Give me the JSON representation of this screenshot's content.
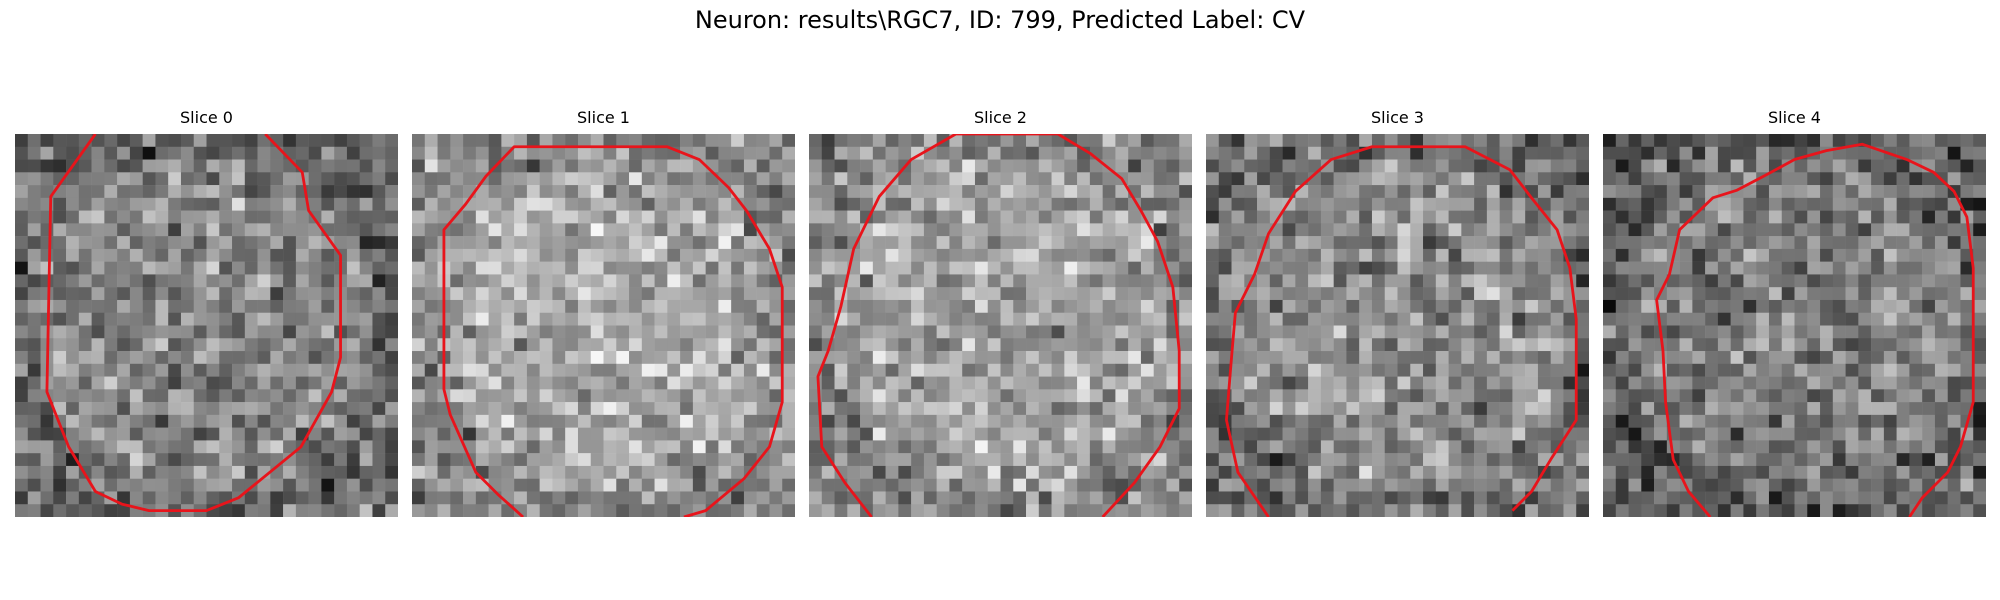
{
  "figure": {
    "title": "Neuron: results\\RGC7, ID: 799, Predicted Label: CV"
  },
  "panels": [
    {
      "title": "Slice 0",
      "seed": 11,
      "brightCenter": 0.52,
      "contour": [
        [
          6.3,
          0
        ],
        [
          2.8,
          4.9
        ],
        [
          2.5,
          20.2
        ],
        [
          4.2,
          24.5
        ],
        [
          6.3,
          28.0
        ],
        [
          8.4,
          29.0
        ],
        [
          10.5,
          29.5
        ],
        [
          15.0,
          29.5
        ],
        [
          17.5,
          28.5
        ],
        [
          22.4,
          24.5
        ],
        [
          24.8,
          20.2
        ],
        [
          25.5,
          17.5
        ],
        [
          25.5,
          9.5
        ],
        [
          23.0,
          6.0
        ],
        [
          22.5,
          3.0
        ],
        [
          19.6,
          0
        ]
      ],
      "closed": false
    },
    {
      "title": "Slice 1",
      "seed": 23,
      "brightCenter": 0.66,
      "contour": [
        [
          8.7,
          30
        ],
        [
          6.7,
          28.2
        ],
        [
          5.0,
          26.5
        ],
        [
          3.0,
          22.0
        ],
        [
          2.5,
          20.0
        ],
        [
          2.5,
          7.5
        ],
        [
          4.2,
          5.5
        ],
        [
          5.8,
          3.3
        ],
        [
          8.0,
          1.0
        ],
        [
          20.0,
          1.0
        ],
        [
          22.5,
          2.0
        ],
        [
          24.8,
          4.2
        ],
        [
          26.2,
          6.0
        ],
        [
          28.0,
          9.0
        ],
        [
          29.0,
          12.0
        ],
        [
          29.0,
          21.0
        ],
        [
          28.0,
          24.5
        ],
        [
          26.0,
          27.0
        ],
        [
          23.0,
          29.5
        ],
        [
          21.3,
          30
        ]
      ],
      "closed": false
    },
    {
      "title": "Slice 2",
      "seed": 37,
      "brightCenter": 0.64,
      "contour": [
        [
          4.9,
          30
        ],
        [
          2.8,
          27.3
        ],
        [
          1.0,
          24.5
        ],
        [
          0.7,
          19.0
        ],
        [
          1.5,
          17.0
        ],
        [
          2.5,
          13.5
        ],
        [
          3.5,
          9.0
        ],
        [
          5.5,
          4.9
        ],
        [
          8.0,
          2.0
        ],
        [
          11.5,
          0
        ],
        [
          19.5,
          0
        ],
        [
          22.0,
          1.5
        ],
        [
          24.5,
          3.5
        ],
        [
          26.0,
          6.0
        ],
        [
          27.3,
          8.4
        ],
        [
          28.5,
          12.0
        ],
        [
          29.0,
          17.0
        ],
        [
          29.0,
          21.5
        ],
        [
          27.5,
          24.5
        ],
        [
          25.5,
          27.3
        ],
        [
          23.0,
          30
        ]
      ],
      "closed": false
    },
    {
      "title": "Slice 3",
      "seed": 41,
      "brightCenter": 0.55,
      "contour": [
        [
          4.9,
          30
        ],
        [
          2.5,
          26.5
        ],
        [
          1.6,
          22.4
        ],
        [
          2.0,
          17.5
        ],
        [
          2.3,
          14.0
        ],
        [
          3.8,
          11.0
        ],
        [
          4.9,
          7.8
        ],
        [
          7.0,
          4.5
        ],
        [
          9.8,
          2.0
        ],
        [
          13.0,
          1.0
        ],
        [
          20.3,
          1.0
        ],
        [
          23.8,
          2.8
        ],
        [
          25.5,
          5.0
        ],
        [
          27.5,
          7.5
        ],
        [
          28.5,
          10.5
        ],
        [
          29.0,
          14.5
        ],
        [
          29.0,
          22.4
        ],
        [
          27.0,
          25.5
        ],
        [
          25.5,
          28.0
        ],
        [
          24.0,
          29.5
        ]
      ],
      "closed": false
    },
    {
      "title": "Slice 4",
      "seed": 53,
      "brightCenter": 0.5,
      "contour": [
        [
          8.4,
          30
        ],
        [
          6.7,
          28.0
        ],
        [
          5.5,
          25.5
        ],
        [
          4.9,
          21.0
        ],
        [
          4.7,
          17.0
        ],
        [
          4.2,
          13.0
        ],
        [
          5.2,
          11.0
        ],
        [
          6.0,
          7.5
        ],
        [
          8.6,
          5.0
        ],
        [
          10.5,
          4.4
        ],
        [
          12.6,
          3.3
        ],
        [
          15.0,
          2.0
        ],
        [
          17.5,
          1.3
        ],
        [
          20.3,
          0.8
        ],
        [
          23.8,
          2.0
        ],
        [
          25.9,
          3.0
        ],
        [
          27.5,
          4.5
        ],
        [
          28.5,
          6.5
        ],
        [
          29.0,
          10.5
        ],
        [
          29.0,
          21.0
        ],
        [
          28.0,
          24.5
        ],
        [
          27.0,
          26.5
        ],
        [
          25.0,
          28.5
        ],
        [
          24.0,
          30
        ]
      ],
      "closed": false
    }
  ],
  "colors": {
    "contour": "#e8141b"
  }
}
